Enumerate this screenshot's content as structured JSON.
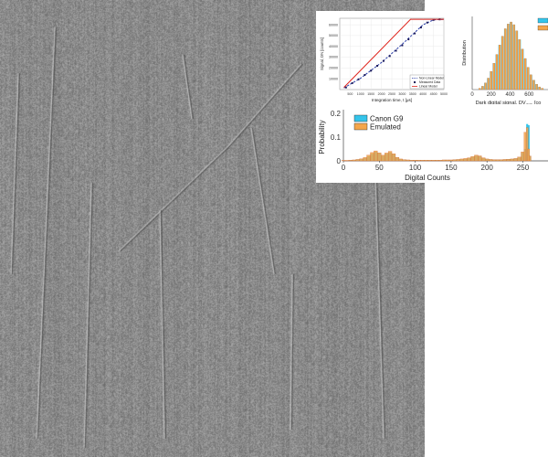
{
  "colors": {
    "texture_base": "#8a8a8a",
    "cyan": "#35c4ea",
    "orange": "#f5a64b",
    "dark_orange": "#d8652a",
    "red_line": "#e0261e",
    "blue_line": "#2b3ea8",
    "navy_marker": "#1a1a5a"
  },
  "chart_data": [
    {
      "type": "line",
      "xlabel": "Integration time, t [μs]",
      "ylabel": "Signal, DN [counts]",
      "xlim": [
        0,
        5000
      ],
      "ylim": [
        0,
        66000
      ],
      "xticks": [
        "500",
        "1000",
        "1500",
        "2000",
        "2500",
        "3000",
        "3500",
        "4000",
        "4500",
        "5000"
      ],
      "yticks": [
        "10000",
        "20000",
        "30000",
        "40000",
        "50000",
        "60000"
      ],
      "legend": [
        "Non-Linear Model",
        "Measured Data",
        "Linear Model"
      ],
      "legend_position": "bottom-right",
      "series": [
        {
          "name": "Non-Linear Model",
          "style": "dashed",
          "x": [
            200,
            1000,
            2000,
            3000,
            3500,
            4000,
            4500,
            5000
          ],
          "y": [
            1500,
            10500,
            25000,
            42000,
            51000,
            60000,
            64500,
            65000
          ]
        },
        {
          "name": "Measured Data",
          "style": "markers",
          "x": [
            300,
            600,
            900,
            1200,
            1500,
            1800,
            2100,
            2400,
            2700,
            3000,
            3300,
            3600,
            3900,
            4200,
            4500,
            4800
          ],
          "y": [
            2000,
            6000,
            9500,
            13500,
            17500,
            22000,
            26500,
            31000,
            36000,
            41000,
            46500,
            52000,
            57500,
            62000,
            64500,
            65000
          ]
        },
        {
          "name": "Linear Model",
          "style": "solid",
          "x": [
            200,
            3400,
            4000,
            5000
          ],
          "y": [
            2000,
            65000,
            65000,
            65000
          ]
        }
      ]
    },
    {
      "type": "bar",
      "xlabel": "Dark digital signal, DV",
      "xlabel_sub": "dark",
      "xlabel_tail": " [co",
      "ylabel": "Distribution",
      "xticks": [
        "0",
        "200",
        "400",
        "600"
      ],
      "x_bins": [
        80,
        110,
        140,
        170,
        200,
        230,
        260,
        290,
        320,
        350,
        380,
        410,
        440,
        470,
        500,
        530,
        560,
        590,
        620,
        650,
        680,
        710,
        740
      ],
      "series": [
        {
          "name": "",
          "color": "cyan",
          "values": [
            0.02,
            0.05,
            0.1,
            0.17,
            0.27,
            0.39,
            0.52,
            0.66,
            0.79,
            0.9,
            0.97,
            1.0,
            0.96,
            0.87,
            0.74,
            0.6,
            0.46,
            0.33,
            0.22,
            0.14,
            0.08,
            0.04,
            0.02
          ]
        },
        {
          "name": "",
          "color": "orange",
          "values": [
            0.02,
            0.05,
            0.1,
            0.17,
            0.27,
            0.39,
            0.52,
            0.66,
            0.79,
            0.9,
            0.97,
            1.0,
            0.96,
            0.87,
            0.74,
            0.6,
            0.46,
            0.33,
            0.22,
            0.14,
            0.08,
            0.04,
            0.02
          ]
        }
      ],
      "legend_position": "top-right"
    },
    {
      "type": "bar",
      "xlabel": "Digital Counts",
      "ylabel": "Probability",
      "xlim": [
        0,
        285
      ],
      "ylim": [
        0,
        0.2
      ],
      "xticks": [
        "0",
        "50",
        "100",
        "150",
        "200",
        "250"
      ],
      "yticks": [
        "0",
        "0.1",
        "0.2"
      ],
      "legend": [
        "Canon G9",
        "Emulated"
      ],
      "legend_position": "top-left",
      "series": [
        {
          "name": "Canon G9",
          "color": "cyan",
          "x": [
            0,
            5,
            10,
            15,
            20,
            25,
            30,
            35,
            40,
            45,
            50,
            55,
            60,
            65,
            70,
            75,
            80,
            85,
            90,
            95,
            100,
            105,
            110,
            115,
            120,
            125,
            130,
            135,
            140,
            145,
            150,
            155,
            160,
            165,
            170,
            175,
            180,
            185,
            190,
            195,
            200,
            205,
            210,
            215,
            220,
            225,
            230,
            235,
            240,
            245,
            250,
            253,
            256,
            258,
            260
          ],
          "values": [
            0.002,
            0.002,
            0.003,
            0.004,
            0.006,
            0.008,
            0.012,
            0.02,
            0.03,
            0.038,
            0.032,
            0.022,
            0.03,
            0.036,
            0.028,
            0.014,
            0.007,
            0.005,
            0.004,
            0.003,
            0.003,
            0.003,
            0.003,
            0.003,
            0.003,
            0.003,
            0.003,
            0.003,
            0.004,
            0.004,
            0.004,
            0.005,
            0.006,
            0.007,
            0.009,
            0.012,
            0.017,
            0.022,
            0.02,
            0.012,
            0.008,
            0.006,
            0.005,
            0.005,
            0.005,
            0.006,
            0.007,
            0.008,
            0.01,
            0.015,
            0.035,
            0.05,
            0.155,
            0.15,
            0.02
          ]
        },
        {
          "name": "Emulated",
          "color": "orange",
          "x": [
            0,
            5,
            10,
            15,
            20,
            25,
            30,
            35,
            40,
            45,
            50,
            55,
            60,
            65,
            70,
            75,
            80,
            85,
            90,
            95,
            100,
            105,
            110,
            115,
            120,
            125,
            130,
            135,
            140,
            145,
            150,
            155,
            160,
            165,
            170,
            175,
            180,
            185,
            190,
            195,
            200,
            205,
            210,
            215,
            220,
            225,
            230,
            235,
            240,
            245,
            250,
            253,
            256,
            258,
            260
          ],
          "values": [
            0.002,
            0.002,
            0.003,
            0.004,
            0.006,
            0.009,
            0.014,
            0.024,
            0.035,
            0.042,
            0.034,
            0.024,
            0.033,
            0.04,
            0.03,
            0.015,
            0.008,
            0.005,
            0.004,
            0.003,
            0.003,
            0.003,
            0.003,
            0.003,
            0.003,
            0.003,
            0.003,
            0.003,
            0.004,
            0.004,
            0.004,
            0.005,
            0.006,
            0.008,
            0.01,
            0.013,
            0.018,
            0.024,
            0.021,
            0.013,
            0.008,
            0.006,
            0.005,
            0.005,
            0.005,
            0.006,
            0.007,
            0.008,
            0.01,
            0.016,
            0.038,
            0.12,
            0.14,
            0.05,
            0.02
          ]
        }
      ]
    }
  ]
}
